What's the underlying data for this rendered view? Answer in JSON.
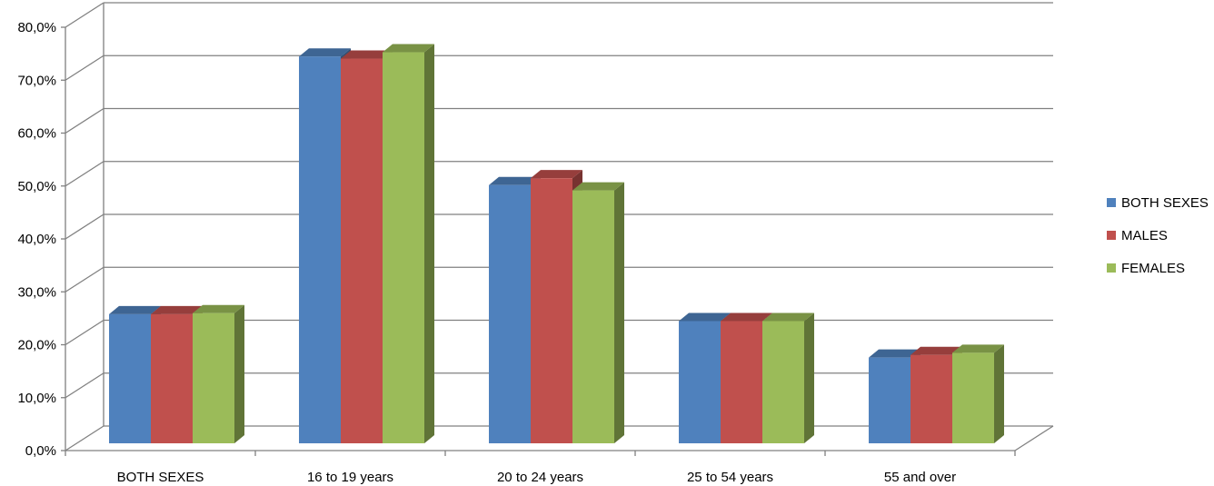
{
  "chart_data": {
    "type": "bar",
    "title": "",
    "xlabel": "",
    "ylabel": "",
    "categories": [
      "BOTH SEXES",
      "16 to 19 years",
      "20 to 24 years",
      "25 to 54 years",
      "55 and over"
    ],
    "series": [
      {
        "name": "BOTH SEXES",
        "color": "#4F81BD",
        "values": [
          24.4,
          73.1,
          48.8,
          23.1,
          16.2
        ]
      },
      {
        "name": "MALES",
        "color": "#C0504D",
        "values": [
          24.4,
          72.7,
          50.1,
          23.1,
          16.7
        ]
      },
      {
        "name": "FEMALES",
        "color": "#9BBB59",
        "values": [
          24.6,
          73.9,
          47.8,
          23.1,
          17.1
        ]
      }
    ],
    "ylim": [
      0,
      80
    ],
    "yticks": [
      "0,0%",
      "10,0%",
      "20,0%",
      "30,0%",
      "40,0%",
      "50,0%",
      "60,0%",
      "70,0%",
      "80,0%"
    ],
    "grid": true,
    "three_d": true,
    "legend_position": "right"
  }
}
